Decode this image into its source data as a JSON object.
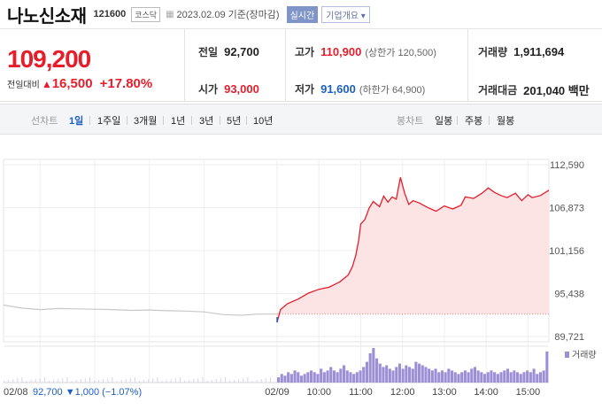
{
  "stock": {
    "name": "나노신소재",
    "code": "121600",
    "market": "코스닥",
    "date_text": "2023.02.09  기준(장마감)",
    "realtime_label": "실시간",
    "company_label": "기업개요",
    "price": "109,200",
    "change_label": "전일대비",
    "change_value": "16,500",
    "change_pct": "+17.80%"
  },
  "stats": {
    "prev_label": "전일",
    "prev_value": "92,700",
    "high_label": "고가",
    "high_value": "110,900",
    "high_limit": "(상한가 120,500)",
    "volume_label": "거래량",
    "volume_value": "1,911,694",
    "open_label": "시가",
    "open_value": "93,000",
    "low_label": "저가",
    "low_value": "91,600",
    "low_limit": "(하한가 64,900)",
    "amount_label": "거래대금",
    "amount_value": "201,040 백만"
  },
  "toolbar": {
    "line_chart_label": "선차트",
    "periods": [
      "1일",
      "1주일",
      "3개월",
      "1년",
      "3년",
      "5년",
      "10년"
    ],
    "candle_label": "봉차트",
    "candles": [
      "일봉",
      "주봉",
      "월봉"
    ]
  },
  "colors": {
    "up": "#e61e2b",
    "down": "#1c5fc4",
    "fill": "#fde4e4",
    "volume": "#9d8fd6"
  },
  "chart_data": {
    "type": "line",
    "title": "",
    "y_ticks": [
      "112,590",
      "106,873",
      "101,156",
      "95,438",
      "89,721"
    ],
    "ylim": [
      89721,
      112590
    ],
    "x_ticks": [
      "02/09",
      "10:00",
      "11:00",
      "12:00",
      "13:00",
      "14:00",
      "15:00"
    ],
    "prev_day_label": "02/08",
    "prev_day_summary": "92,700 ▼1,000 (−1.07%)",
    "volume_label": "거래량",
    "reference_value": 92700,
    "series": [
      {
        "name": "02/08",
        "x_hours": [
          8,
          8.5,
          9,
          9.5,
          10,
          10.5,
          11,
          11.5,
          12,
          12.5,
          13,
          13.5,
          14,
          14.5,
          15,
          15.5
        ],
        "values": [
          93900,
          93500,
          93300,
          93450,
          93400,
          93350,
          93300,
          93200,
          93250,
          93150,
          93100,
          93000,
          92650,
          92550,
          92700,
          92700
        ]
      },
      {
        "name": "02/09",
        "x_hours": [
          9.0,
          9.08,
          9.25,
          9.5,
          9.75,
          10.0,
          10.25,
          10.5,
          10.7,
          10.8,
          10.88,
          10.95,
          11.0,
          11.1,
          11.2,
          11.3,
          11.45,
          11.55,
          11.65,
          11.75,
          11.85,
          11.95,
          12.05,
          12.15,
          12.25,
          12.4,
          12.6,
          12.8,
          13.0,
          13.2,
          13.4,
          13.5,
          13.7,
          13.9,
          14.05,
          14.2,
          14.35,
          14.5,
          14.7,
          14.85,
          15.0,
          15.1,
          15.3,
          15.5
        ],
        "values": [
          91600,
          93300,
          94100,
          94700,
          95500,
          96000,
          96300,
          97000,
          97900,
          99000,
          100500,
          102500,
          104700,
          105300,
          106800,
          107700,
          107000,
          108400,
          107600,
          108300,
          108000,
          110900,
          108800,
          107300,
          107800,
          107500,
          106900,
          106400,
          107100,
          106700,
          107200,
          108300,
          108100,
          108800,
          109500,
          108900,
          108500,
          108200,
          108800,
          107800,
          108600,
          108200,
          108500,
          109200
        ]
      }
    ],
    "volume_note": "intraday volume bars, relative scale",
    "volume_bins": [
      0.15,
      0.25,
      0.2,
      0.3,
      0.25,
      0.35,
      0.3,
      0.2,
      0.25,
      0.3,
      0.35,
      0.3,
      0.25,
      0.4,
      0.3,
      0.35,
      0.45,
      0.35,
      0.3,
      0.4,
      0.5,
      0.35,
      0.3,
      0.25,
      0.3,
      0.35,
      0.45,
      0.6,
      0.85,
      1.0,
      0.7,
      0.55,
      0.45,
      0.5,
      0.4,
      0.35,
      0.45,
      0.55,
      0.4,
      0.5,
      0.45,
      0.4,
      0.6,
      0.55,
      0.5,
      0.45,
      0.4,
      0.35,
      0.4,
      0.3,
      0.35,
      0.3,
      0.4,
      0.35,
      0.3,
      0.25,
      0.3,
      0.35,
      0.3,
      0.4,
      0.45,
      0.35,
      0.3,
      0.25,
      0.3,
      0.35,
      0.3,
      0.25,
      0.3,
      0.35,
      0.4,
      0.3,
      0.35,
      0.3,
      0.25,
      0.3,
      0.35,
      0.3,
      0.4,
      0.25,
      0.3,
      0.35,
      0.9
    ]
  }
}
